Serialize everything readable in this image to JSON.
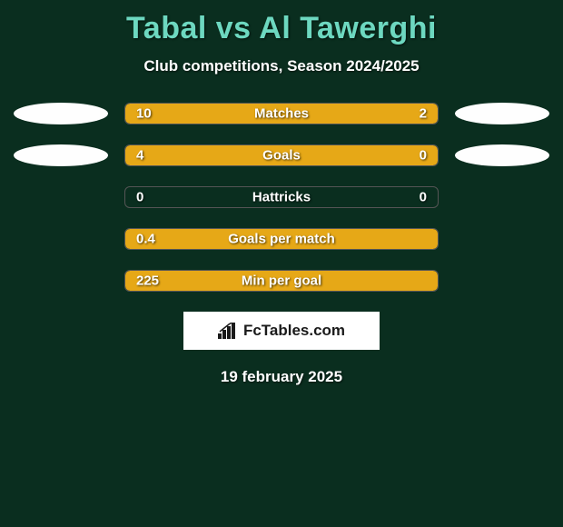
{
  "title": "Tabal vs Al Tawerghi",
  "subtitle": "Club competitions, Season 2024/2025",
  "date": "19 february 2025",
  "logo_text": "FcTables.com",
  "colors": {
    "background": "#0a2e1f",
    "title": "#6dd8c0",
    "text": "#ffffff",
    "bar_fill": "#e6a817",
    "ellipse": "#fefefe",
    "logo_bg": "#ffffff",
    "logo_text": "#1a1a1a"
  },
  "rows": [
    {
      "label": "Matches",
      "left_value": "10",
      "right_value": "2",
      "left_width_pct": 77,
      "right_width_pct": 23,
      "show_ellipses": true
    },
    {
      "label": "Goals",
      "left_value": "4",
      "right_value": "0",
      "left_width_pct": 78,
      "right_width_pct": 22,
      "show_ellipses": true
    },
    {
      "label": "Hattricks",
      "left_value": "0",
      "right_value": "0",
      "left_width_pct": 0,
      "right_width_pct": 0,
      "show_ellipses": false
    },
    {
      "label": "Goals per match",
      "left_value": "0.4",
      "right_value": "",
      "left_width_pct": 100,
      "right_width_pct": 0,
      "show_ellipses": false
    },
    {
      "label": "Min per goal",
      "left_value": "225",
      "right_value": "",
      "left_width_pct": 100,
      "right_width_pct": 0,
      "show_ellipses": false
    }
  ]
}
